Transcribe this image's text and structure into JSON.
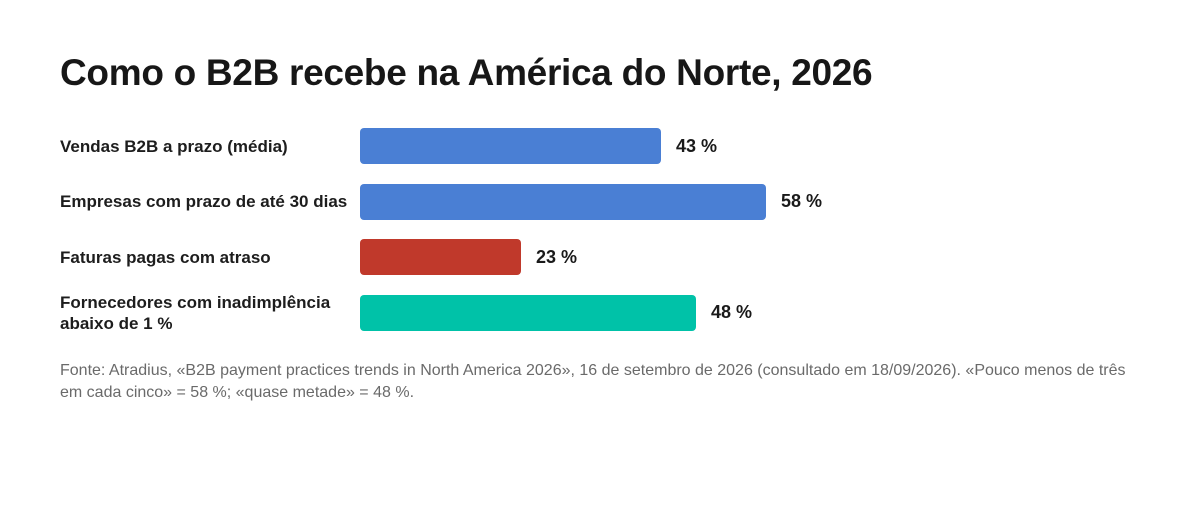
{
  "chart_data": {
    "type": "bar",
    "orientation": "horizontal",
    "title": "Como o B2B recebe na América do Norte, 2026",
    "categories": [
      "Vendas B2B a prazo (média)",
      "Empresas com prazo de até 30 dias",
      "Faturas pagas com atraso",
      "Fornecedores com inadimplência abaixo de 1 %"
    ],
    "values": [
      43,
      58,
      23,
      48
    ],
    "value_labels": [
      "43 %",
      "58 %",
      "23 %",
      "48 %"
    ],
    "colors": [
      "#4a7fd4",
      "#4a7fd4",
      "#c0392b",
      "#00c2a8"
    ],
    "xlim": [
      0,
      100
    ],
    "grid": false,
    "legend": "none"
  },
  "source": "Fonte: Atradius, «B2B payment practices trends in North America 2026», 16 de setembro de 2026 (consultado em 18/09/2026). «Pouco menos de três em cada cinco» = 58 %; «quase metade» = 48 %."
}
